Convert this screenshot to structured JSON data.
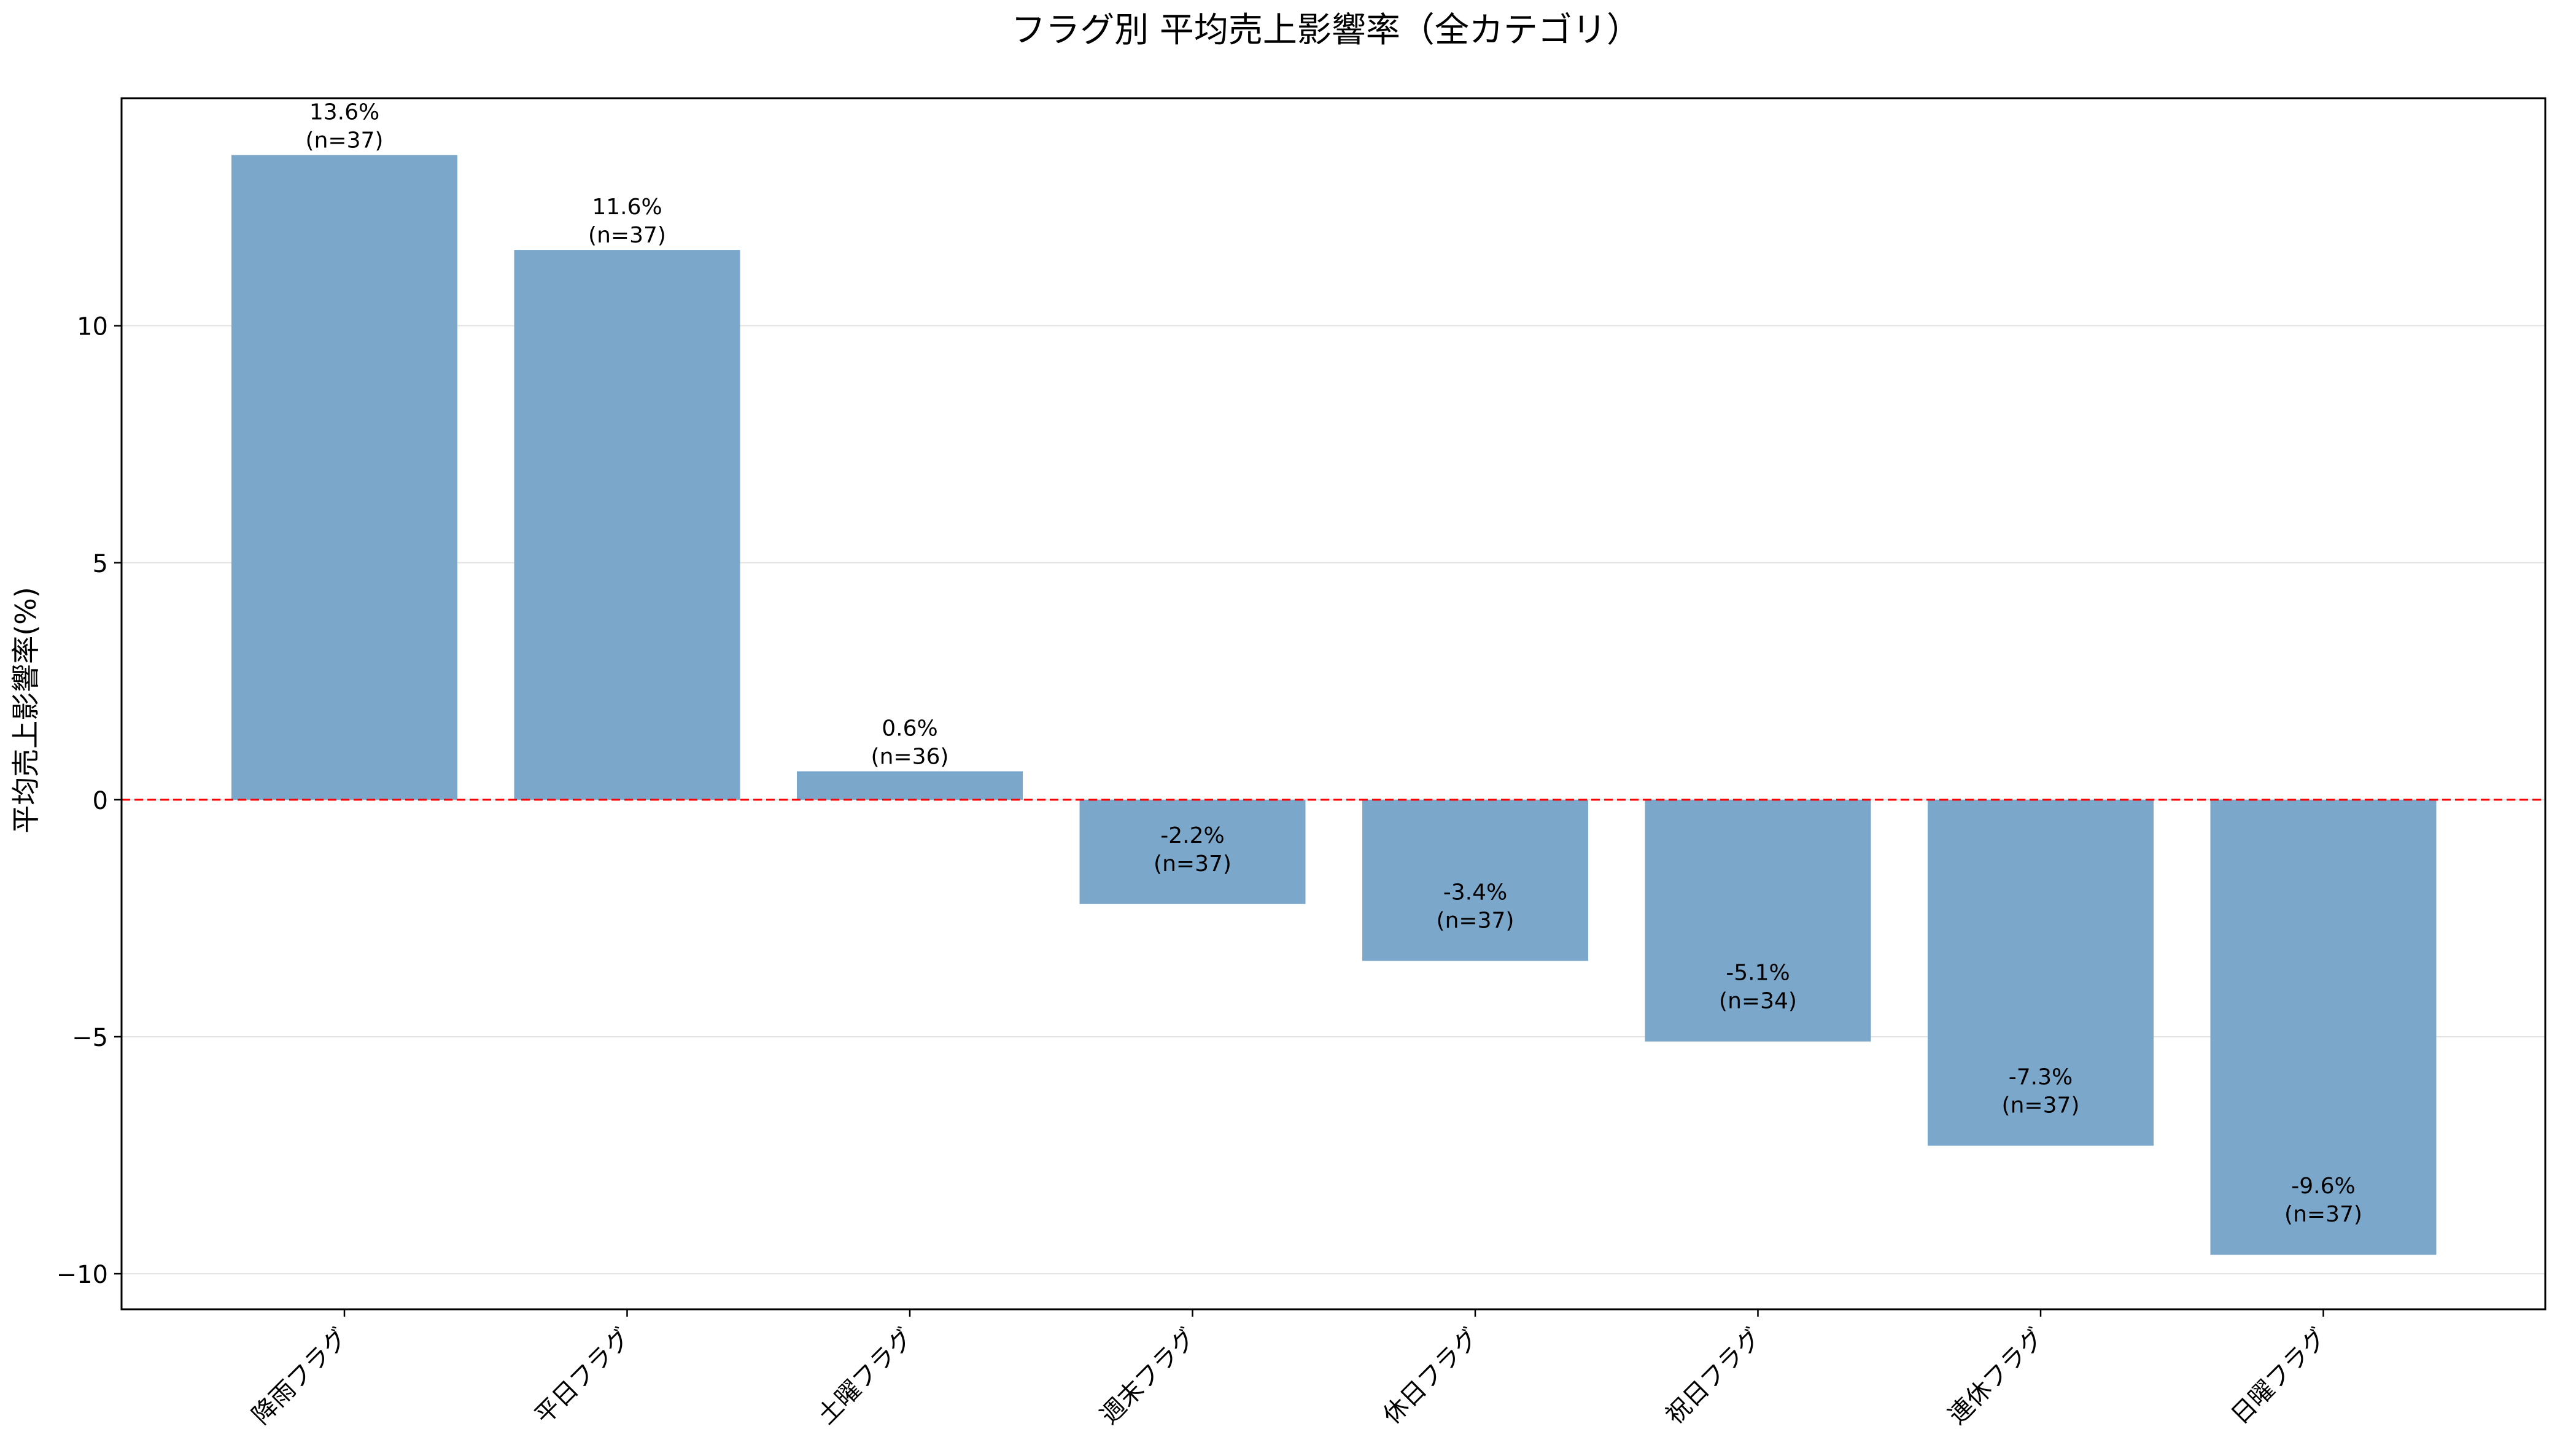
{
  "chart_data": {
    "type": "bar",
    "title": "フラグ別 平均売上影響率（全カテゴリ）",
    "xlabel": "",
    "ylabel": "平均売上影響率(%)",
    "categories": [
      "降雨フラグ",
      "平日フラグ",
      "土曜フラグ",
      "週末フラグ",
      "休日フラグ",
      "祝日フラグ",
      "連休フラグ",
      "日曜フラグ"
    ],
    "series": [
      {
        "values": [
          13.6,
          11.6,
          0.6,
          -2.2,
          -3.4,
          -5.1,
          -7.3,
          -9.6
        ],
        "labels": [
          "13.6%\n(n=37)",
          "11.6%\n(n=37)",
          "0.6%\n(n=36)",
          "-2.2%\n(n=37)",
          "-3.4%\n(n=37)",
          "-5.1%\n(n=34)",
          "-7.3%\n(n=37)",
          "-9.6%\n(n=37)"
        ],
        "counts": [
          37,
          37,
          36,
          37,
          37,
          34,
          37,
          37
        ]
      }
    ],
    "ylim": [
      -10.75,
      14.8
    ],
    "yticks": [
      -10,
      -5,
      0,
      5,
      10
    ],
    "ytick_labels": [
      "−10",
      "−5",
      "0",
      "5",
      "10"
    ],
    "bar_color": "#7ba7cb",
    "zero_line_color": "#ff0000",
    "grid": "y",
    "legend": "none"
  }
}
